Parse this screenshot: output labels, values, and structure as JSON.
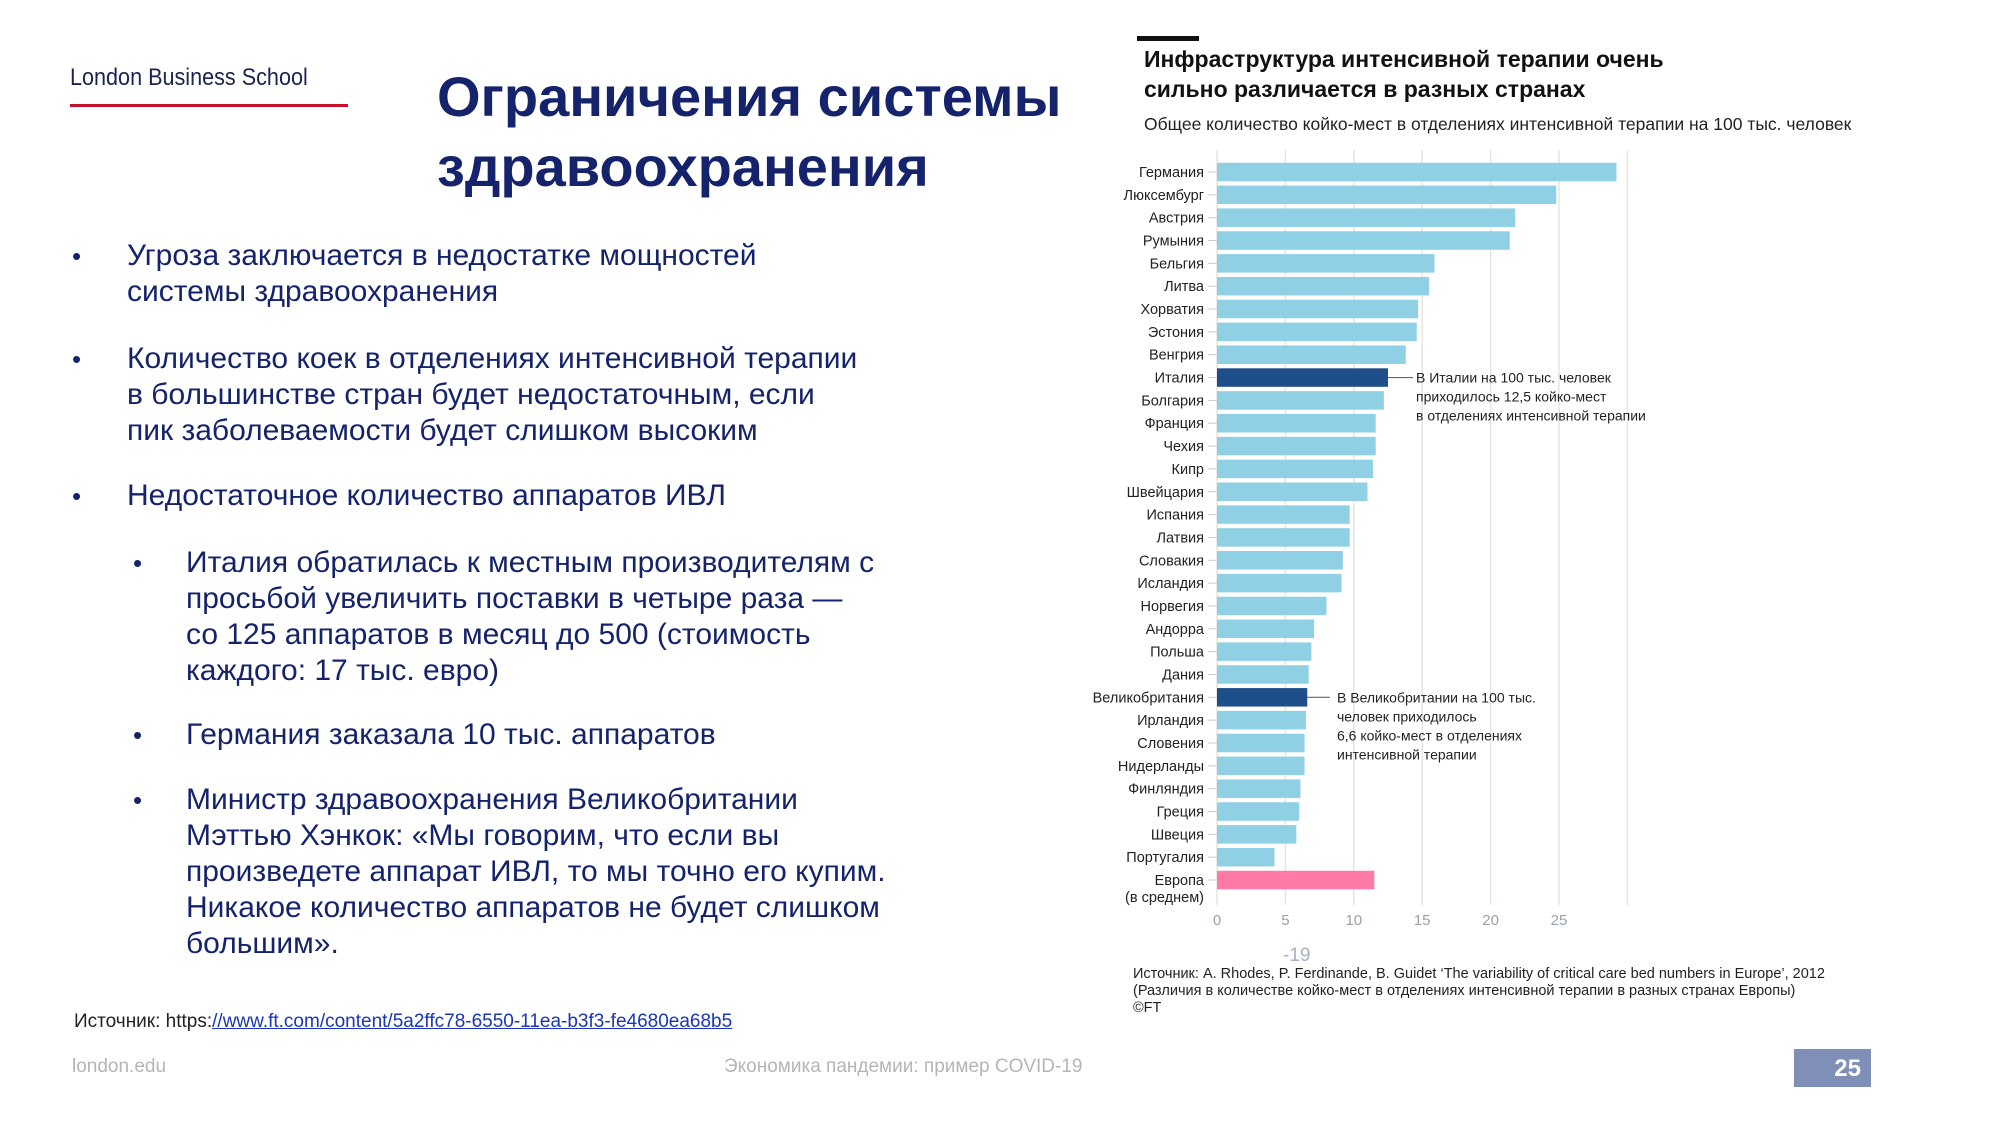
{
  "logo": "London Business School",
  "title": [
    "Ограничения системы",
    "здравоохранения"
  ],
  "bullets": [
    {
      "level": 1,
      "lines": [
        "Угроза заключается в недостатке мощностей",
        "системы здравоохранения"
      ]
    },
    {
      "level": 1,
      "lines": [
        "Количество коек в отделениях интенсивной терапии",
        "в большинстве стран будет недостаточным, если",
        "пик заболеваемости будет слишком высоким"
      ]
    },
    {
      "level": 1,
      "lines": [
        "Недостаточное количество аппаратов ИВЛ"
      ]
    },
    {
      "level": 2,
      "lines": [
        "Италия обратилась к местным производителям с",
        "просьбой увеличить поставки в четыре раза —",
        "со 125 аппаратов в месяц до 500 (стоимость",
        "каждого: 17 тыс. евро)"
      ]
    },
    {
      "level": 2,
      "lines": [
        "Германия заказала 10 тыс. аппаратов"
      ]
    },
    {
      "level": 2,
      "lines": [
        "Министр здравоохранения Великобритании",
        "Мэттью Хэнкок: «Мы говорим, что если вы",
        "произведете аппарат ИВЛ, то мы точно его купим.",
        "Никакое количество аппаратов не будет слишком",
        "большим»."
      ]
    }
  ],
  "bullet_glyph": "•",
  "source": {
    "prefix": "Источник: https:",
    "link": "//www.ft.com/content/5a2ffc78-6550-11ea-b3f3-fe4680ea68b5"
  },
  "footer": {
    "site": "london.edu",
    "center": "Экономика пандемии: пример COVID-19",
    "page": "25"
  },
  "chart_fragment": "-19",
  "chart_data": {
    "type": "bar",
    "orientation": "horizontal",
    "title": "Инфраструктура интенсивной терапии очень сильно различается в разных странах",
    "title_lines": [
      "Инфраструктура интенсивной терапии очень",
      "сильно различается в разных странах"
    ],
    "subtitle": "Общее количество койко-мест в отделениях интенсивной терапии на 100 тыс. человек",
    "categories": [
      "Германия",
      "Люксембург",
      "Австрия",
      "Румыния",
      "Бельгия",
      "Литва",
      "Хорватия",
      "Эстония",
      "Венгрия",
      "Италия",
      "Болгария",
      "Франция",
      "Чехия",
      "Кипр",
      "Швейцария",
      "Испания",
      "Латвия",
      "Словакия",
      "Исландия",
      "Норвегия",
      "Андорра",
      "Польша",
      "Дания",
      "Великобритания",
      "Ирландия",
      "Словения",
      "Нидерланды",
      "Финляндия",
      "Греция",
      "Швеция",
      "Португалия",
      "Европа (в среднем)"
    ],
    "values": [
      29.2,
      24.8,
      21.8,
      21.4,
      15.9,
      15.5,
      14.7,
      14.6,
      13.8,
      12.5,
      12.2,
      11.6,
      11.6,
      11.4,
      11.0,
      9.7,
      9.7,
      9.2,
      9.1,
      8.0,
      7.1,
      6.9,
      6.7,
      6.6,
      6.5,
      6.4,
      6.4,
      6.1,
      6.0,
      5.8,
      4.2,
      11.5
    ],
    "highlight": {
      "Италия": "#1f4f8a",
      "Великобритания": "#1f4f8a",
      "Европа (в среднем)": "#ff7aa6"
    },
    "bar_color": "#8fd0e5",
    "xlim": [
      0,
      30
    ],
    "xticks": [
      0,
      5,
      10,
      15,
      20,
      25
    ],
    "grid": true,
    "annotations": [
      {
        "category": "Италия",
        "lines": [
          "В Италии на 100 тыс. человек",
          "приходилось 12,5 койко-мест",
          "в отделениях интенсивной терапии"
        ]
      },
      {
        "category": "Великобритания",
        "lines": [
          "В Великобритании на 100 тыс.",
          "человек приходилось",
          "6,6 койко-мест в отделениях",
          "интенсивной терапии"
        ]
      }
    ],
    "source_lines": [
      "Источник: A. Rhodes, P. Ferdinande, B. Guidet ‘The variability of critical care bed numbers in Europe’, 2012",
      "(Различия в количестве койко-мест в отделениях интенсивной терапии в разных странах Европы)",
      "©FT"
    ]
  }
}
